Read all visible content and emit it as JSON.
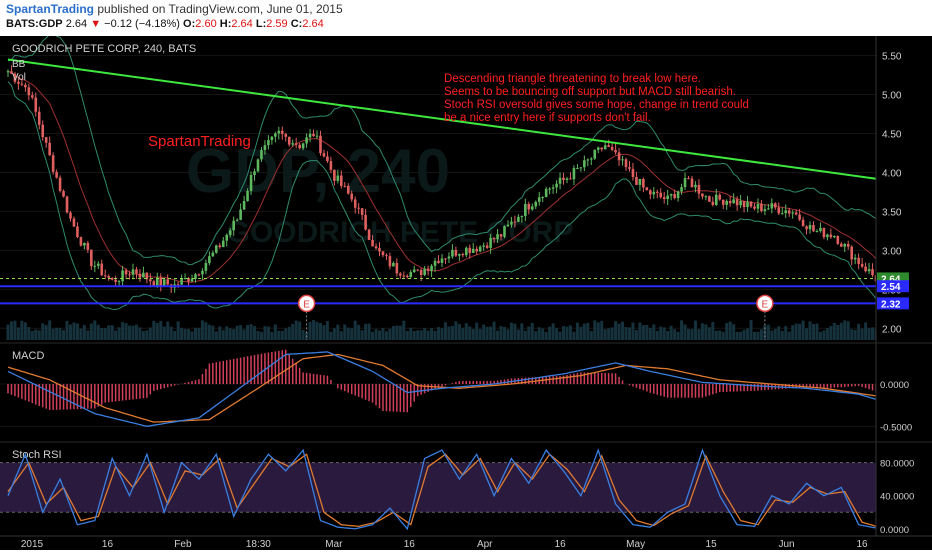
{
  "header": {
    "author": "SpartanTrading",
    "published": "published on TradingView.com, June 01, 2015",
    "symbol": "BATS:GDP",
    "last": "2.64",
    "change": "−0.12 (−4.18%)",
    "open_label": "O:",
    "open": "2.60",
    "high_label": "H:",
    "high": "2.64",
    "low_label": "L:",
    "low": "2.59",
    "close_label": "C:",
    "close": "2.64"
  },
  "main": {
    "title": "GOODRICH PETE CORP, 240, BATS",
    "indicator_bb": "BB",
    "indicator_vol": "Vol",
    "watermark_ticker": "GDP, 240",
    "watermark_name": "GOODRICH PETE CORP",
    "signature": "SpartanTrading",
    "annotation": [
      "Descending triangle threatening to break low here.",
      "Seems to be bouncing off support but MACD still bearish.",
      "Stoch RSI oversold gives some hope, change in trend could",
      "be a nice entry here if supports don't fail."
    ],
    "earnings_marker": "E"
  },
  "macd_pane": {
    "title": "MACD"
  },
  "stoch_pane": {
    "title": "Stoch RSI"
  },
  "colors": {
    "background": "#000000",
    "candle_up": "#5eb85e",
    "candle_down": "#e06060",
    "trendline": "#3ee83e",
    "annotation": "#ff2020",
    "bollinger": "#2e8a6e",
    "midline": "#a03030",
    "support_line": "#2a2aff",
    "price_dotted": "#8edc4a",
    "macd_line": "#3a7ee0",
    "signal_line": "#e07a30",
    "histogram": "#d0405a",
    "stoch_k": "#3a7ee0",
    "stoch_d": "#e07a30",
    "stoch_band": "#2a1a3e",
    "last_price_tag": "#2d8a2d",
    "support_tag": "#2a2aff"
  },
  "chart_data": [
    {
      "type": "candlestick",
      "title": "GOODRICH PETE CORP, 240, BATS",
      "x_ticks": [
        "2015",
        "16",
        "Feb",
        "18:30",
        "Mar",
        "16",
        "Apr",
        "16",
        "May",
        "15",
        "Jun",
        "16"
      ],
      "y_ticks": [
        "5.50",
        "5.00",
        "4.50",
        "4.00",
        "3.50",
        "3.00",
        "2.50",
        "2.00"
      ],
      "ylim": [
        1.85,
        5.7
      ],
      "anchors": [
        [
          0,
          5.3
        ],
        [
          6,
          5.05
        ],
        [
          12,
          4.2
        ],
        [
          18,
          3.4
        ],
        [
          24,
          2.85
        ],
        [
          30,
          2.6
        ],
        [
          36,
          2.75
        ],
        [
          42,
          2.6
        ],
        [
          48,
          2.55
        ],
        [
          54,
          2.7
        ],
        [
          60,
          3.0
        ],
        [
          66,
          3.4
        ],
        [
          72,
          4.2
        ],
        [
          78,
          4.5
        ],
        [
          84,
          4.35
        ],
        [
          88,
          4.5
        ],
        [
          94,
          3.95
        ],
        [
          100,
          3.6
        ],
        [
          106,
          3.0
        ],
        [
          112,
          2.75
        ],
        [
          118,
          2.7
        ],
        [
          124,
          2.9
        ],
        [
          130,
          3.0
        ],
        [
          136,
          3.05
        ],
        [
          142,
          3.2
        ],
        [
          148,
          3.5
        ],
        [
          154,
          3.75
        ],
        [
          160,
          3.9
        ],
        [
          166,
          4.1
        ],
        [
          172,
          4.35
        ],
        [
          178,
          4.05
        ],
        [
          184,
          3.75
        ],
        [
          190,
          3.65
        ],
        [
          196,
          3.9
        ],
        [
          202,
          3.65
        ],
        [
          208,
          3.65
        ],
        [
          214,
          3.55
        ],
        [
          220,
          3.55
        ],
        [
          226,
          3.5
        ],
        [
          232,
          3.25
        ],
        [
          238,
          3.2
        ],
        [
          244,
          2.9
        ],
        [
          250,
          2.64
        ]
      ],
      "trendline": [
        [
          0,
          5.45
        ],
        [
          260,
          3.92
        ]
      ],
      "support_levels": [
        2.64,
        2.54,
        2.32
      ],
      "price_tags": [
        "2.64",
        "2.54",
        "2.32"
      ],
      "earnings_at_candles": [
        86,
        218
      ]
    },
    {
      "type": "line",
      "title": "MACD",
      "y_ticks": [
        "0.0000",
        "-0.5000"
      ],
      "ylim": [
        -0.65,
        0.45
      ],
      "series": [
        {
          "key": "macd",
          "anchors": [
            [
              0,
              0.15
            ],
            [
              10,
              -0.05
            ],
            [
              25,
              -0.35
            ],
            [
              40,
              -0.5
            ],
            [
              55,
              -0.4
            ],
            [
              70,
              0.05
            ],
            [
              80,
              0.35
            ],
            [
              92,
              0.38
            ],
            [
              105,
              0.15
            ],
            [
              115,
              -0.1
            ],
            [
              125,
              -0.05
            ],
            [
              140,
              0.0
            ],
            [
              160,
              0.12
            ],
            [
              175,
              0.25
            ],
            [
              185,
              0.15
            ],
            [
              200,
              0.02
            ],
            [
              215,
              -0.02
            ],
            [
              230,
              -0.05
            ],
            [
              245,
              -0.12
            ],
            [
              250,
              -0.18
            ]
          ]
        },
        {
          "key": "signal",
          "anchors": [
            [
              0,
              0.2
            ],
            [
              12,
              0.05
            ],
            [
              28,
              -0.28
            ],
            [
              42,
              -0.45
            ],
            [
              58,
              -0.42
            ],
            [
              72,
              -0.05
            ],
            [
              85,
              0.3
            ],
            [
              95,
              0.35
            ],
            [
              108,
              0.22
            ],
            [
              118,
              -0.02
            ],
            [
              130,
              -0.05
            ],
            [
              145,
              0.0
            ],
            [
              165,
              0.1
            ],
            [
              178,
              0.22
            ],
            [
              190,
              0.18
            ],
            [
              205,
              0.05
            ],
            [
              220,
              0.0
            ],
            [
              235,
              -0.05
            ],
            [
              250,
              -0.14
            ]
          ]
        }
      ]
    },
    {
      "type": "line",
      "title": "Stoch RSI",
      "y_ticks": [
        "80.0000",
        "40.0000",
        "0.0000"
      ],
      "ylim": [
        -5,
        100
      ],
      "band": [
        20,
        80
      ],
      "series": [
        {
          "key": "k",
          "anchors": [
            [
              0,
              40
            ],
            [
              5,
              90
            ],
            [
              10,
              20
            ],
            [
              15,
              60
            ],
            [
              20,
              5
            ],
            [
              25,
              10
            ],
            [
              30,
              85
            ],
            [
              35,
              40
            ],
            [
              40,
              90
            ],
            [
              45,
              20
            ],
            [
              50,
              80
            ],
            [
              55,
              60
            ],
            [
              60,
              90
            ],
            [
              65,
              15
            ],
            [
              70,
              60
            ],
            [
              75,
              90
            ],
            [
              80,
              70
            ],
            [
              85,
              95
            ],
            [
              90,
              10
            ],
            [
              95,
              2
            ],
            [
              100,
              0
            ],
            [
              105,
              5
            ],
            [
              110,
              25
            ],
            [
              115,
              0
            ],
            [
              120,
              85
            ],
            [
              125,
              95
            ],
            [
              130,
              60
            ],
            [
              135,
              90
            ],
            [
              140,
              40
            ],
            [
              145,
              85
            ],
            [
              150,
              55
            ],
            [
              155,
              95
            ],
            [
              160,
              70
            ],
            [
              165,
              40
            ],
            [
              170,
              95
            ],
            [
              175,
              30
            ],
            [
              180,
              5
            ],
            [
              185,
              2
            ],
            [
              190,
              20
            ],
            [
              195,
              30
            ],
            [
              200,
              95
            ],
            [
              205,
              40
            ],
            [
              210,
              5
            ],
            [
              215,
              3
            ],
            [
              220,
              40
            ],
            [
              225,
              30
            ],
            [
              230,
              55
            ],
            [
              235,
              40
            ],
            [
              240,
              50
            ],
            [
              245,
              5
            ],
            [
              250,
              1
            ]
          ]
        },
        {
          "key": "d",
          "anchors": [
            [
              0,
              45
            ],
            [
              6,
              80
            ],
            [
              11,
              30
            ],
            [
              16,
              50
            ],
            [
              21,
              10
            ],
            [
              26,
              15
            ],
            [
              31,
              75
            ],
            [
              36,
              50
            ],
            [
              41,
              80
            ],
            [
              46,
              30
            ],
            [
              51,
              70
            ],
            [
              56,
              65
            ],
            [
              61,
              85
            ],
            [
              66,
              25
            ],
            [
              71,
              55
            ],
            [
              76,
              85
            ],
            [
              81,
              75
            ],
            [
              86,
              90
            ],
            [
              91,
              20
            ],
            [
              96,
              5
            ],
            [
              101,
              3
            ],
            [
              106,
              8
            ],
            [
              111,
              20
            ],
            [
              116,
              5
            ],
            [
              121,
              75
            ],
            [
              126,
              90
            ],
            [
              131,
              65
            ],
            [
              136,
              85
            ],
            [
              141,
              45
            ],
            [
              146,
              80
            ],
            [
              151,
              60
            ],
            [
              156,
              90
            ],
            [
              161,
              72
            ],
            [
              166,
              45
            ],
            [
              171,
              88
            ],
            [
              176,
              35
            ],
            [
              181,
              10
            ],
            [
              186,
              4
            ],
            [
              191,
              18
            ],
            [
              196,
              28
            ],
            [
              201,
              88
            ],
            [
              206,
              45
            ],
            [
              211,
              10
            ],
            [
              216,
              5
            ],
            [
              221,
              35
            ],
            [
              226,
              32
            ],
            [
              231,
              50
            ],
            [
              236,
              42
            ],
            [
              241,
              45
            ],
            [
              246,
              8
            ],
            [
              250,
              3
            ]
          ]
        }
      ]
    }
  ]
}
